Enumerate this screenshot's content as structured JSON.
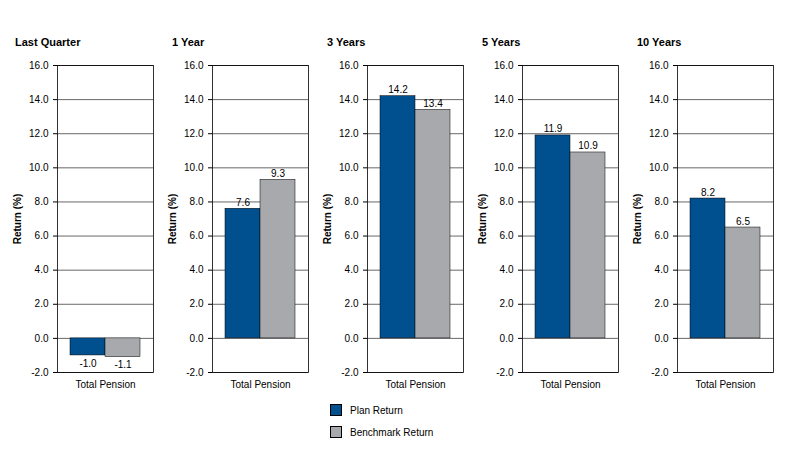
{
  "chart_data": [
    {
      "type": "bar",
      "title": "Last Quarter",
      "ylabel": "Return (%)",
      "categories": [
        "Total Pension"
      ],
      "series": [
        {
          "name": "Plan Return",
          "color": "#00508f",
          "values": [
            -1.0
          ],
          "value_labels": [
            "-1.0"
          ]
        },
        {
          "name": "Benchmark Return",
          "color": "#a7a9ac",
          "values": [
            -1.1
          ],
          "value_labels": [
            "-1.1"
          ]
        }
      ],
      "ylim": [
        -2,
        16
      ],
      "yticks": [
        {
          "value": -2,
          "label": "-2.0"
        },
        {
          "value": 0,
          "label": "0.0"
        },
        {
          "value": 2,
          "label": "2.0"
        },
        {
          "value": 4,
          "label": "4.0"
        },
        {
          "value": 6,
          "label": "6.0"
        },
        {
          "value": 8,
          "label": "8.0"
        },
        {
          "value": 10,
          "label": "10.0"
        },
        {
          "value": 12,
          "label": "12.0"
        },
        {
          "value": 14,
          "label": "14.0"
        },
        {
          "value": 16,
          "label": "16.0"
        }
      ],
      "grid": true,
      "data_labels": true
    },
    {
      "type": "bar",
      "title": "1 Year",
      "ylabel": "Return (%)",
      "categories": [
        "Total Pension"
      ],
      "series": [
        {
          "name": "Plan Return",
          "color": "#00508f",
          "values": [
            7.6
          ],
          "value_labels": [
            "7.6"
          ]
        },
        {
          "name": "Benchmark Return",
          "color": "#a7a9ac",
          "values": [
            9.3
          ],
          "value_labels": [
            "9.3"
          ]
        }
      ],
      "ylim": [
        -2,
        16
      ],
      "yticks": [
        {
          "value": -2,
          "label": "-2.0"
        },
        {
          "value": 0,
          "label": "0.0"
        },
        {
          "value": 2,
          "label": "2.0"
        },
        {
          "value": 4,
          "label": "4.0"
        },
        {
          "value": 6,
          "label": "6.0"
        },
        {
          "value": 8,
          "label": "8.0"
        },
        {
          "value": 10,
          "label": "10.0"
        },
        {
          "value": 12,
          "label": "12.0"
        },
        {
          "value": 14,
          "label": "14.0"
        },
        {
          "value": 16,
          "label": "16.0"
        }
      ],
      "grid": true,
      "data_labels": true
    },
    {
      "type": "bar",
      "title": "3 Years",
      "ylabel": "Return (%)",
      "categories": [
        "Total Pension"
      ],
      "series": [
        {
          "name": "Plan Return",
          "color": "#00508f",
          "values": [
            14.2
          ],
          "value_labels": [
            "14.2"
          ]
        },
        {
          "name": "Benchmark Return",
          "color": "#a7a9ac",
          "values": [
            13.4
          ],
          "value_labels": [
            "13.4"
          ]
        }
      ],
      "ylim": [
        -2,
        16
      ],
      "yticks": [
        {
          "value": -2,
          "label": "-2.0"
        },
        {
          "value": 0,
          "label": "0.0"
        },
        {
          "value": 2,
          "label": "2.0"
        },
        {
          "value": 4,
          "label": "4.0"
        },
        {
          "value": 6,
          "label": "6.0"
        },
        {
          "value": 8,
          "label": "8.0"
        },
        {
          "value": 10,
          "label": "10.0"
        },
        {
          "value": 12,
          "label": "12.0"
        },
        {
          "value": 14,
          "label": "14.0"
        },
        {
          "value": 16,
          "label": "16.0"
        }
      ],
      "grid": true,
      "data_labels": true,
      "legend": "bottom"
    },
    {
      "type": "bar",
      "title": "5 Years",
      "ylabel": "Return (%)",
      "categories": [
        "Total Pension"
      ],
      "series": [
        {
          "name": "Plan Return",
          "color": "#00508f",
          "values": [
            11.9
          ],
          "value_labels": [
            "11.9"
          ]
        },
        {
          "name": "Benchmark Return",
          "color": "#a7a9ac",
          "values": [
            10.9
          ],
          "value_labels": [
            "10.9"
          ]
        }
      ],
      "ylim": [
        -2,
        16
      ],
      "yticks": [
        {
          "value": -2,
          "label": "-2.0"
        },
        {
          "value": 0,
          "label": "0.0"
        },
        {
          "value": 2,
          "label": "2.0"
        },
        {
          "value": 4,
          "label": "4.0"
        },
        {
          "value": 6,
          "label": "6.0"
        },
        {
          "value": 8,
          "label": "8.0"
        },
        {
          "value": 10,
          "label": "10.0"
        },
        {
          "value": 12,
          "label": "12.0"
        },
        {
          "value": 14,
          "label": "14.0"
        },
        {
          "value": 16,
          "label": "16.0"
        }
      ],
      "grid": true,
      "data_labels": true
    },
    {
      "type": "bar",
      "title": "10 Years",
      "ylabel": "Return (%)",
      "categories": [
        "Total Pension"
      ],
      "series": [
        {
          "name": "Plan Return",
          "color": "#00508f",
          "values": [
            8.2
          ],
          "value_labels": [
            "8.2"
          ]
        },
        {
          "name": "Benchmark Return",
          "color": "#a7a9ac",
          "values": [
            6.5
          ],
          "value_labels": [
            "6.5"
          ]
        }
      ],
      "ylim": [
        -2,
        16
      ],
      "yticks": [
        {
          "value": -2,
          "label": "-2.0"
        },
        {
          "value": 0,
          "label": "0.0"
        },
        {
          "value": 2,
          "label": "2.0"
        },
        {
          "value": 4,
          "label": "4.0"
        },
        {
          "value": 6,
          "label": "6.0"
        },
        {
          "value": 8,
          "label": "8.0"
        },
        {
          "value": 10,
          "label": "10.0"
        },
        {
          "value": 12,
          "label": "12.0"
        },
        {
          "value": 14,
          "label": "14.0"
        },
        {
          "value": 16,
          "label": "16.0"
        }
      ],
      "grid": true,
      "data_labels": true
    }
  ]
}
